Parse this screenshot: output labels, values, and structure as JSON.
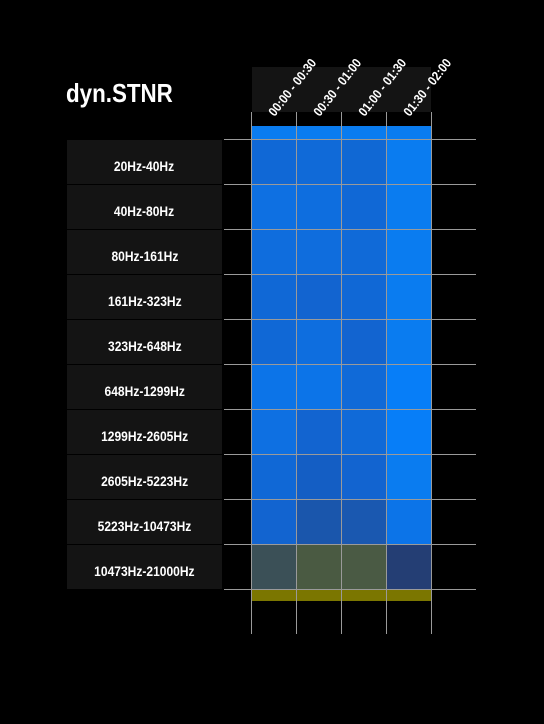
{
  "chart_data": {
    "type": "heatmap",
    "title": "dyn.STNR",
    "columns": [
      "00:00 - 00:30",
      "00:30 - 01:00",
      "01:00 - 01:30",
      "01:30 - 02:00"
    ],
    "rows": [
      "20Hz-40Hz",
      "40Hz-80Hz",
      "80Hz-161Hz",
      "161Hz-323Hz",
      "323Hz-648Hz",
      "648Hz-1299Hz",
      "1299Hz-2605Hz",
      "2605Hz-5223Hz",
      "5223Hz-10473Hz",
      "10473Hz-21000Hz"
    ],
    "cell_colors": [
      [
        "#1068d6",
        "#106ad8",
        "#1068d4",
        "#0a7cf0"
      ],
      [
        "#0e70e2",
        "#0e6edf",
        "#1068d6",
        "#0a7cf0"
      ],
      [
        "#0f6ddd",
        "#0f6ddd",
        "#106ad8",
        "#0a7cf0"
      ],
      [
        "#1068d6",
        "#1264d0",
        "#1068d6",
        "#0a7cf0"
      ],
      [
        "#1068d6",
        "#0e6edf",
        "#1264d0",
        "#0a7cf0"
      ],
      [
        "#0c74e8",
        "#0c74e8",
        "#106ad8",
        "#077ef8"
      ],
      [
        "#0e70e2",
        "#1264d0",
        "#106ad8",
        "#077ef8"
      ],
      [
        "#1068d6",
        "#145ec4",
        "#1264d0",
        "#0a7cf0"
      ],
      [
        "#1264d0",
        "#1a56ac",
        "#1a58b0",
        "#0c74e8"
      ],
      [
        "#3b5057",
        "#4a5a42",
        "#4a5a44",
        "#243e74"
      ]
    ],
    "top_bar_color": "#0a7cf0",
    "bottom_bar_color": "#7b7600"
  }
}
